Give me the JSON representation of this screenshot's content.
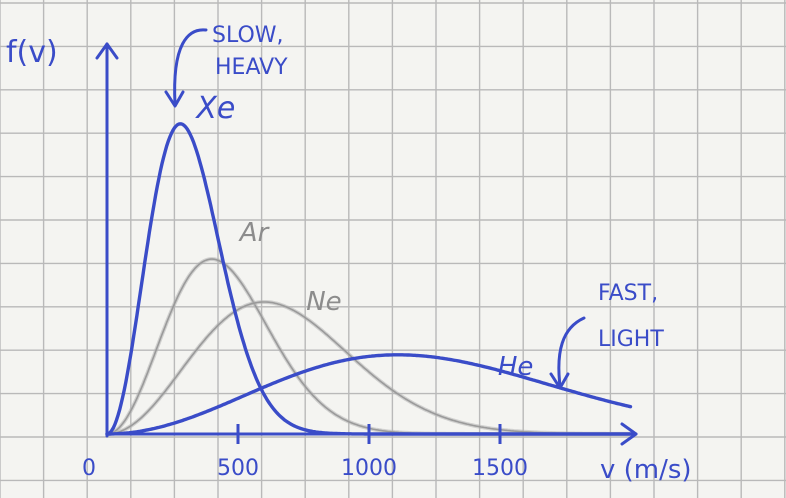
{
  "chart_data": {
    "type": "line",
    "ylabel": "f(v)",
    "xlabel": "v (m/s)",
    "x_ticks": [
      {
        "value": 0,
        "label": "0"
      },
      {
        "value": 500,
        "label": "500"
      },
      {
        "value": 1000,
        "label": "1000"
      },
      {
        "value": 1500,
        "label": "1500"
      }
    ],
    "xlim": [
      0,
      2100
    ],
    "ylim": [
      0,
      1.0
    ],
    "grid": true,
    "series": [
      {
        "name": "Xe",
        "color": "#3a4cc8",
        "peak_speed": 280,
        "peak_height": 0.94
      },
      {
        "name": "Ar",
        "color": "#9a9a9a",
        "peak_speed": 400,
        "peak_height": 0.53
      },
      {
        "name": "Ne",
        "color": "#9a9a9a",
        "peak_speed": 600,
        "peak_height": 0.4
      },
      {
        "name": "He",
        "color": "#3a4cc8",
        "peak_speed": 1110,
        "peak_height": 0.24
      }
    ],
    "annotations": [
      {
        "text_lines": [
          "SLOW,",
          "HEAVY"
        ],
        "points_to": "Xe"
      },
      {
        "text_lines": [
          "FAST,",
          "LIGHT"
        ],
        "points_to": "He"
      }
    ]
  }
}
